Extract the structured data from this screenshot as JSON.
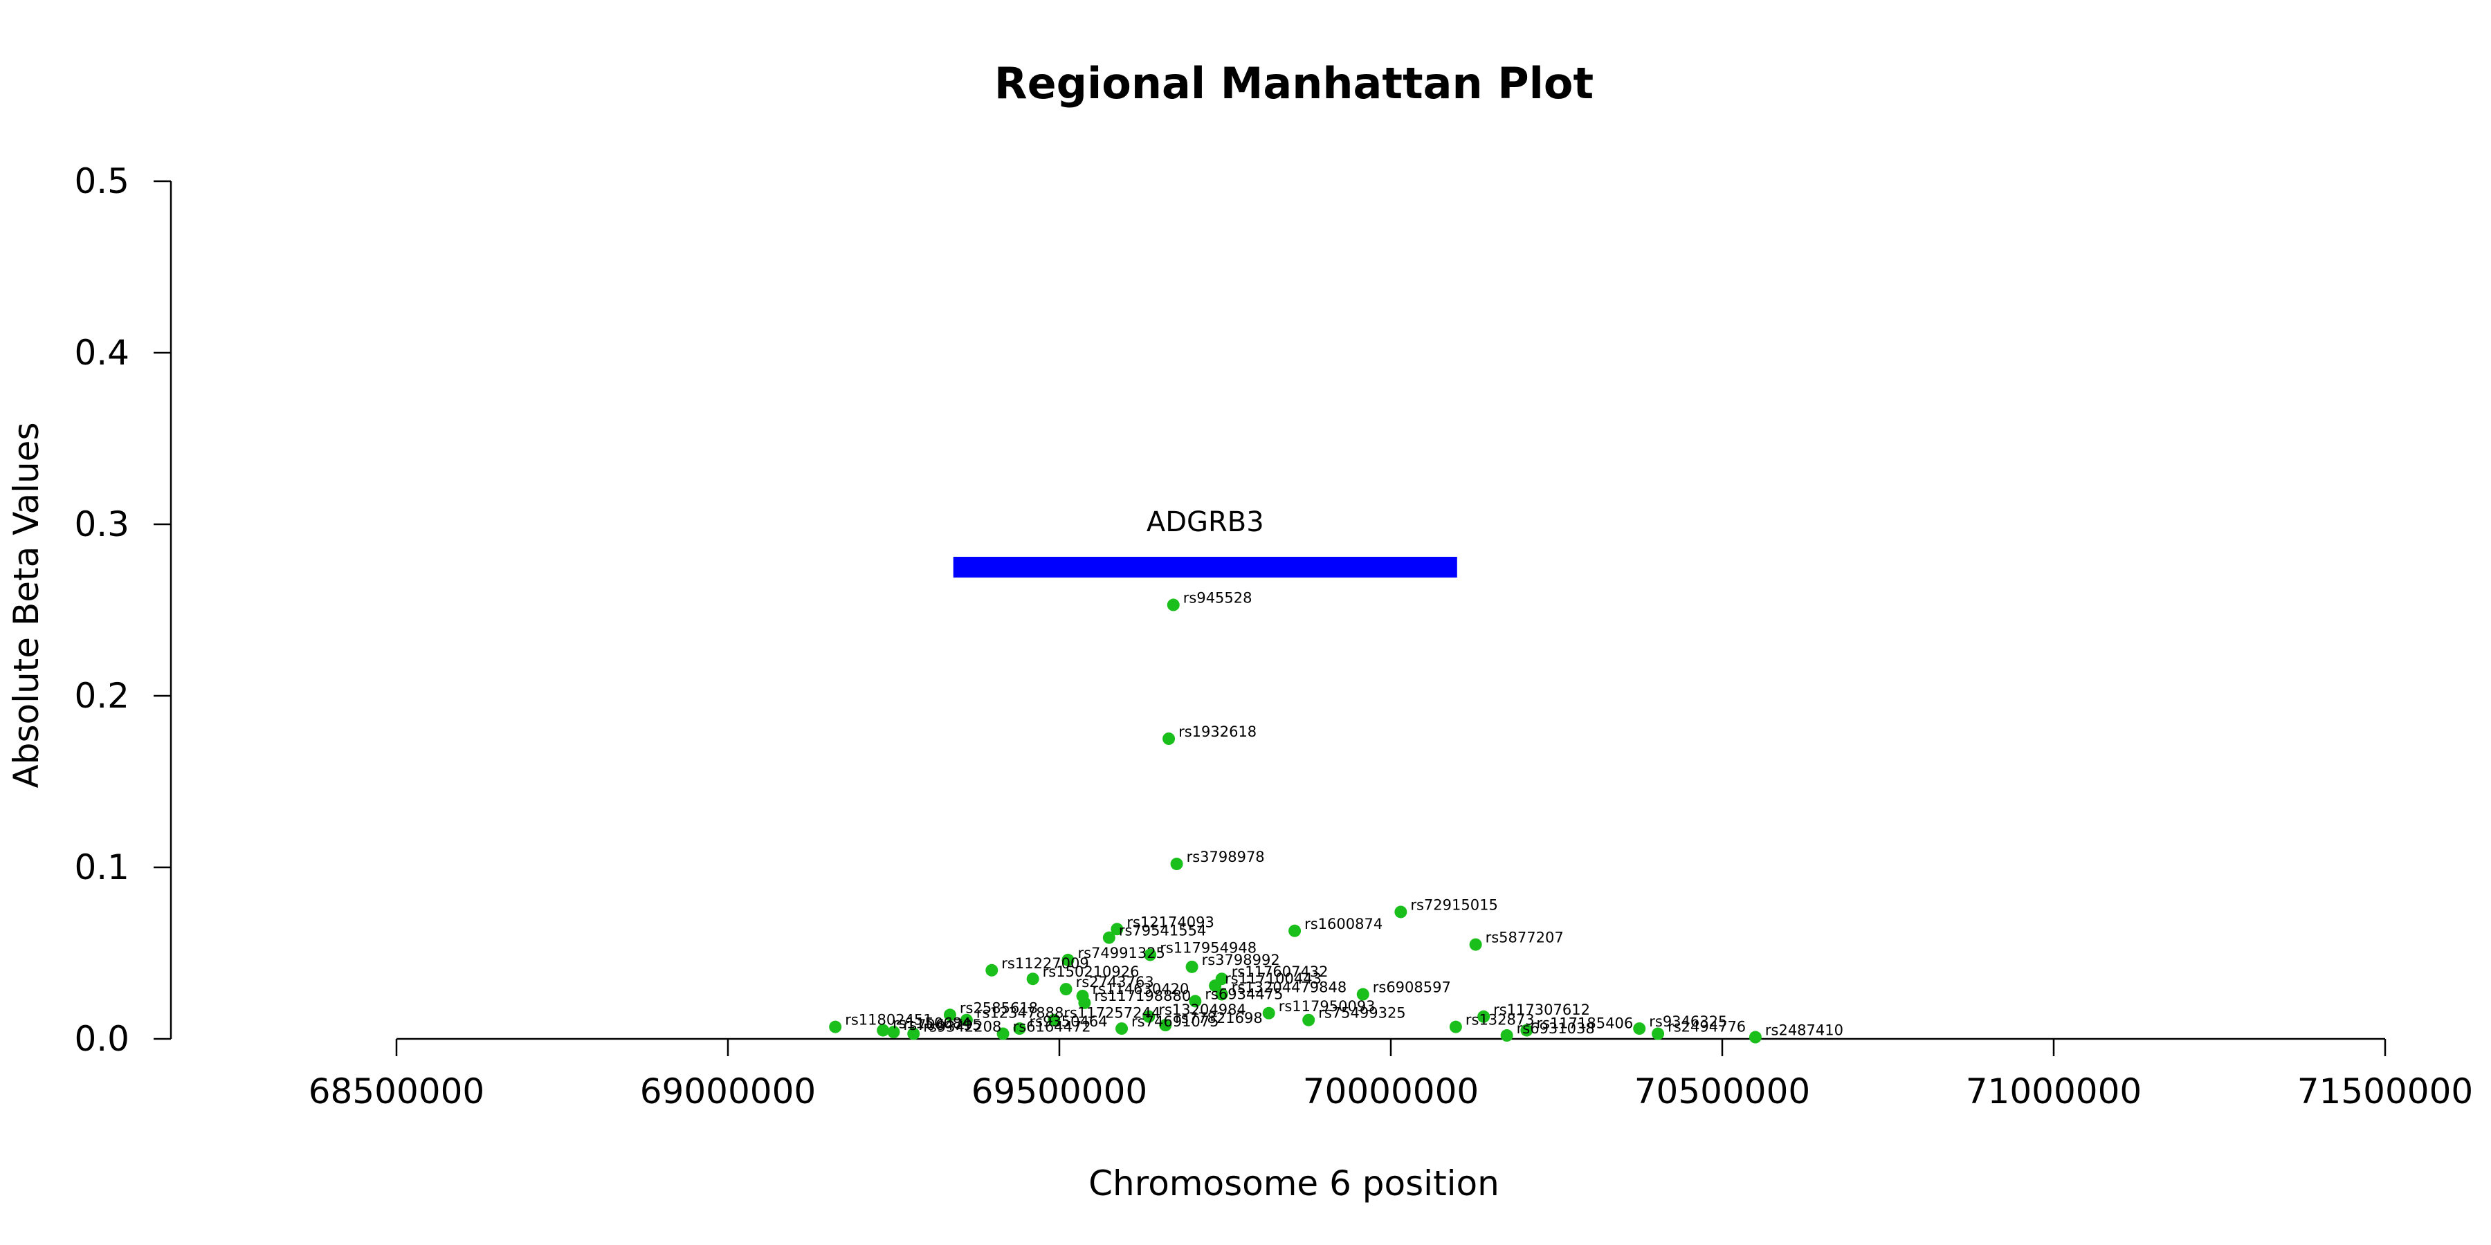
{
  "chart_data": {
    "type": "scatter",
    "title": "Regional Manhattan Plot",
    "xlabel": "Chromosome 6 position",
    "ylabel": "Absolute Beta Values",
    "xlim": [
      68500000,
      71500000
    ],
    "ylim": [
      0,
      0.5
    ],
    "x_ticks": [
      68500000,
      69000000,
      69500000,
      70000000,
      70500000,
      71000000,
      71500000
    ],
    "x_tick_labels": [
      "68500000",
      "69000000",
      "69500000",
      "70000000",
      "70500000",
      "71000000",
      "71500000"
    ],
    "y_ticks": [
      0.0,
      0.1,
      0.2,
      0.3,
      0.4,
      0.5
    ],
    "y_tick_labels": [
      "0.0",
      "0.1",
      "0.2",
      "0.3",
      "0.4",
      "0.5"
    ],
    "point_color": "#1bbf1b",
    "gene": {
      "name": "ADGRB3",
      "start": 69340000,
      "end": 70100000,
      "y": 0.275,
      "color": "#0000ff"
    },
    "points": [
      {
        "id": "rs945528",
        "x": 69672000,
        "y": 0.253
      },
      {
        "id": "rs1932618",
        "x": 69665000,
        "y": 0.175
      },
      {
        "id": "rs3798978",
        "x": 69677000,
        "y": 0.102
      },
      {
        "id": "rs72915015",
        "x": 70015000,
        "y": 0.074
      },
      {
        "id": "rs12174093",
        "x": 69587000,
        "y": 0.064
      },
      {
        "id": "rs1600874",
        "x": 69855000,
        "y": 0.063
      },
      {
        "id": "rs79541554",
        "x": 69575000,
        "y": 0.059
      },
      {
        "id": "rs5877207",
        "x": 70128000,
        "y": 0.055
      },
      {
        "id": "rs117954948",
        "x": 69637000,
        "y": 0.049
      },
      {
        "id": "rs74991325",
        "x": 69513000,
        "y": 0.046
      },
      {
        "id": "rs3798992",
        "x": 69700000,
        "y": 0.042
      },
      {
        "id": "rs11227009",
        "x": 69398000,
        "y": 0.04
      },
      {
        "id": "rs150210926",
        "x": 69460000,
        "y": 0.035
      },
      {
        "id": "rs117607432",
        "x": 69745000,
        "y": 0.035
      },
      {
        "id": "rs117100443",
        "x": 69735000,
        "y": 0.031
      },
      {
        "id": "rs2743763",
        "x": 69510000,
        "y": 0.029
      },
      {
        "id": "rs6908597",
        "x": 69958000,
        "y": 0.026
      },
      {
        "id": "rs13204479848",
        "x": 69745000,
        "y": 0.026
      },
      {
        "id": "rs114630420",
        "x": 69535000,
        "y": 0.025
      },
      {
        "id": "rs6934475",
        "x": 69705000,
        "y": 0.022
      },
      {
        "id": "rs117198880",
        "x": 69538000,
        "y": 0.021
      },
      {
        "id": "rs2585618",
        "x": 69335000,
        "y": 0.014
      },
      {
        "id": "rs117950093",
        "x": 69816000,
        "y": 0.015
      },
      {
        "id": "rs117307612",
        "x": 70140000,
        "y": 0.013
      },
      {
        "id": "rs13204984",
        "x": 69635000,
        "y": 0.013
      },
      {
        "id": "rs117257244",
        "x": 69492000,
        "y": 0.011
      },
      {
        "id": "rs75499325",
        "x": 69876000,
        "y": 0.011
      },
      {
        "id": "rs12347888",
        "x": 69360000,
        "y": 0.011
      },
      {
        "id": "rs9346325",
        "x": 70375000,
        "y": 0.006
      },
      {
        "id": "rs11802451",
        "x": 69162000,
        "y": 0.007
      },
      {
        "id": "rs132873",
        "x": 70098000,
        "y": 0.007
      },
      {
        "id": "rs117185406",
        "x": 70205000,
        "y": 0.005
      },
      {
        "id": "rs77821698",
        "x": 69660000,
        "y": 0.008
      },
      {
        "id": "rs74691075",
        "x": 69594000,
        "y": 0.006
      },
      {
        "id": "rs2494776",
        "x": 70403000,
        "y": 0.003
      },
      {
        "id": "rs2487410",
        "x": 70550000,
        "y": 0.001
      },
      {
        "id": "rs6931038",
        "x": 70175000,
        "y": 0.002
      },
      {
        "id": "rs7064795",
        "x": 69250000,
        "y": 0.004
      },
      {
        "id": "rs9342208",
        "x": 69280000,
        "y": 0.003
      },
      {
        "id": "rs6164472",
        "x": 69415000,
        "y": 0.003
      },
      {
        "id": "rs1150684",
        "x": 69234000,
        "y": 0.005
      },
      {
        "id": "rs9350464",
        "x": 69440000,
        "y": 0.006
      }
    ]
  }
}
